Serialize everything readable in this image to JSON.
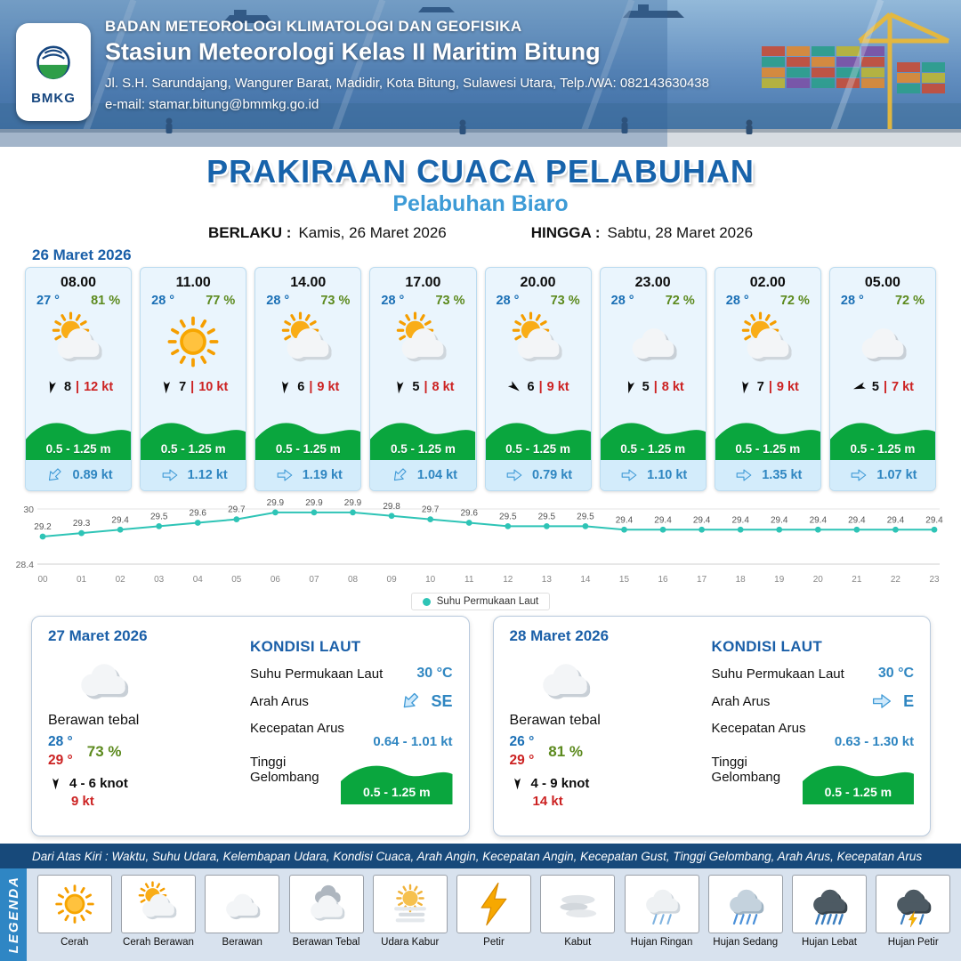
{
  "header": {
    "logo_label": "BMKG",
    "agency": "BADAN METEOROLOGI KLIMATOLOGI DAN GEOFISIKA",
    "station": "Stasiun Meteorologi Kelas II Maritim Bitung",
    "address": "Jl. S.H. Sarundajang, Wangurer Barat, Madidir, Kota Bitung, Sulawesi Utara, Telp./WA: 082143630438",
    "email": "e-mail: stamar.bitung@bmmkg.go.id"
  },
  "title": {
    "main": "PRAKIRAAN CUACA PELABUHAN",
    "port": "Pelabuhan Biaro",
    "berlaku_label": "BERLAKU :",
    "berlaku_value": "Kamis, 26 Maret 2026",
    "hingga_label": "HINGGA :",
    "hingga_value": "Sabtu, 28 Maret 2026"
  },
  "labels": {
    "pipe": "|"
  },
  "colors": {
    "accent_blue": "#1a5fa8",
    "value_blue": "#2f86c1",
    "wave_green": "#0aa63e",
    "alert_red": "#cc2222",
    "humidity_green": "#5c8a1e",
    "sst_line": "#2ec4b6"
  },
  "day1": {
    "date": "26 Maret 2026",
    "cards": [
      {
        "time": "08.00",
        "temp": "27 °",
        "rh": "81 %",
        "icon": "cerah-berawan",
        "wind_speed": "8",
        "gust": "12 kt",
        "wind_rot": 12,
        "wave": "0.5 - 1.25 m",
        "current": "0.89 kt",
        "current_rot": 135
      },
      {
        "time": "11.00",
        "temp": "28 °",
        "rh": "77 %",
        "icon": "cerah",
        "wind_speed": "7",
        "gust": "10 kt",
        "wind_rot": 4,
        "wave": "0.5 - 1.25 m",
        "current": "1.12 kt",
        "current_rot": 0
      },
      {
        "time": "14.00",
        "temp": "28 °",
        "rh": "73 %",
        "icon": "cerah-berawan",
        "wind_speed": "6",
        "gust": "9 kt",
        "wind_rot": 6,
        "wave": "0.5 - 1.25 m",
        "current": "1.19 kt",
        "current_rot": 0
      },
      {
        "time": "17.00",
        "temp": "28 °",
        "rh": "73 %",
        "icon": "cerah-berawan",
        "wind_speed": "5",
        "gust": "8 kt",
        "wind_rot": 8,
        "wave": "0.5 - 1.25 m",
        "current": "1.04 kt",
        "current_rot": 135
      },
      {
        "time": "20.00",
        "temp": "28 °",
        "rh": "73 %",
        "icon": "cerah-berawan",
        "wind_speed": "6",
        "gust": "9 kt",
        "wind_rot": -52,
        "wave": "0.5 - 1.25 m",
        "current": "0.79 kt",
        "current_rot": 0
      },
      {
        "time": "23.00",
        "temp": "28 °",
        "rh": "72 %",
        "icon": "berawan",
        "wind_speed": "5",
        "gust": "8 kt",
        "wind_rot": 14,
        "wave": "0.5 - 1.25 m",
        "current": "1.10 kt",
        "current_rot": 0
      },
      {
        "time": "02.00",
        "temp": "28 °",
        "rh": "72 %",
        "icon": "cerah-berawan",
        "wind_speed": "7",
        "gust": "9 kt",
        "wind_rot": 8,
        "wave": "0.5 - 1.25 m",
        "current": "1.35 kt",
        "current_rot": 0
      },
      {
        "time": "05.00",
        "temp": "28 °",
        "rh": "72 %",
        "icon": "berawan",
        "wind_speed": "5",
        "gust": "7 kt",
        "wind_rot": 72,
        "wave": "0.5 - 1.25 m",
        "current": "1.07 kt",
        "current_rot": 0
      }
    ]
  },
  "chart_data": {
    "type": "line",
    "title": "",
    "x": [
      "00",
      "01",
      "02",
      "03",
      "04",
      "05",
      "06",
      "07",
      "08",
      "09",
      "10",
      "11",
      "12",
      "13",
      "14",
      "15",
      "16",
      "17",
      "18",
      "19",
      "20",
      "21",
      "22",
      "23"
    ],
    "series": [
      {
        "name": "Suhu Permukaan Laut",
        "values": [
          29.2,
          29.3,
          29.4,
          29.5,
          29.6,
          29.7,
          29.9,
          29.9,
          29.9,
          29.8,
          29.7,
          29.6,
          29.5,
          29.5,
          29.5,
          29.4,
          29.4,
          29.4,
          29.4,
          29.4,
          29.4,
          29.4,
          29.4,
          29.4
        ]
      }
    ],
    "ylim": [
      28.4,
      30
    ],
    "yticks": [
      "30",
      "28.4"
    ],
    "legend": "Suhu Permukaan Laut",
    "legend_position": "bottom-center",
    "grid": false,
    "line_color": "#2ec4b6"
  },
  "day2": {
    "date": "27 Maret 2026",
    "icon": "berawan",
    "condition": "Berawan tebal",
    "temp_min": "28 °",
    "temp_max": "29 °",
    "rh": "73 %",
    "wind_range": "4  - 6 knot",
    "gust": "9 kt",
    "sea": {
      "title": "KONDISI LAUT",
      "sst_label": "Suhu Permukaan Laut",
      "sst_value": "30 °C",
      "dir_label": "Arah Arus",
      "dir_value": "SE",
      "dir_rot": 135,
      "speed_label": "Kecepatan Arus",
      "speed_value": "0.64 - 1.01 kt",
      "wave_label": "Tinggi Gelombang",
      "wave_value": "0.5 - 1.25 m"
    }
  },
  "day3": {
    "date": "28 Maret 2026",
    "icon": "berawan",
    "condition": "Berawan tebal",
    "temp_min": "26 °",
    "temp_max": "29 °",
    "rh": "81 %",
    "wind_range": "4  - 9 knot",
    "gust": "14 kt",
    "sea": {
      "title": "KONDISI LAUT",
      "sst_label": "Suhu Permukaan Laut",
      "sst_value": "30 °C",
      "dir_label": "Arah Arus",
      "dir_value": "E",
      "dir_rot": 0,
      "speed_label": "Kecepatan Arus",
      "speed_value": "0.63 - 1.30 kt",
      "wave_label": "Tinggi Gelombang",
      "wave_value": "0.5 - 1.25 m"
    }
  },
  "footer": {
    "note": "Dari Atas Kiri : Waktu, Suhu Udara, Kelembapan Udara, Kondisi Cuaca, Arah Angin, Kecepatan Angin, Kecepatan Gust, Tinggi Gelombang, Arah Arus, Kecepatan Arus",
    "legend_title": "LEGENDA",
    "items": [
      {
        "label": "Cerah",
        "icon": "cerah"
      },
      {
        "label": "Cerah Berawan",
        "icon": "cerah-berawan"
      },
      {
        "label": "Berawan",
        "icon": "berawan"
      },
      {
        "label": "Berawan Tebal",
        "icon": "berawan-tebal"
      },
      {
        "label": "Udara Kabur",
        "icon": "udara-kabur"
      },
      {
        "label": "Petir",
        "icon": "petir"
      },
      {
        "label": "Kabut",
        "icon": "kabut"
      },
      {
        "label": "Hujan Ringan",
        "icon": "hujan-ringan"
      },
      {
        "label": "Hujan Sedang",
        "icon": "hujan-sedang"
      },
      {
        "label": "Hujan Lebat",
        "icon": "hujan-lebat"
      },
      {
        "label": "Hujan Petir",
        "icon": "hujan-petir"
      }
    ]
  }
}
